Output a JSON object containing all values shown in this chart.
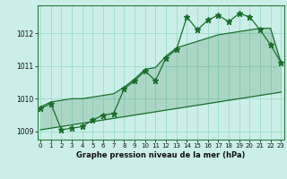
{
  "xlabel": "Graphe pression niveau de la mer (hPa)",
  "ylabel": "",
  "bg_color": "#cceee8",
  "grid_color": "#99ddcc",
  "line_color": "#1a6e2a",
  "x": [
    0,
    1,
    2,
    3,
    4,
    5,
    6,
    7,
    8,
    9,
    10,
    11,
    12,
    13,
    14,
    15,
    16,
    17,
    18,
    19,
    20,
    21,
    22,
    23
  ],
  "y": [
    1009.7,
    1009.85,
    1009.05,
    1009.1,
    1009.15,
    1009.35,
    1009.5,
    1009.55,
    1010.3,
    1010.55,
    1010.85,
    1010.55,
    1011.25,
    1011.5,
    1012.5,
    1012.1,
    1012.4,
    1012.55,
    1012.35,
    1012.6,
    1012.5,
    1012.1,
    1011.65,
    1011.1
  ],
  "lower_band": [
    1009.05,
    1009.1,
    1009.15,
    1009.2,
    1009.25,
    1009.3,
    1009.35,
    1009.4,
    1009.45,
    1009.5,
    1009.55,
    1009.6,
    1009.65,
    1009.7,
    1009.75,
    1009.8,
    1009.85,
    1009.9,
    1009.95,
    1010.0,
    1010.05,
    1010.1,
    1010.15,
    1010.2
  ],
  "upper_band": [
    1009.75,
    1009.9,
    1009.95,
    1010.0,
    1010.0,
    1010.05,
    1010.1,
    1010.15,
    1010.35,
    1010.6,
    1010.9,
    1010.95,
    1011.3,
    1011.55,
    1011.65,
    1011.75,
    1011.85,
    1011.95,
    1012.0,
    1012.05,
    1012.1,
    1012.15,
    1012.15,
    1011.1
  ],
  "ylim": [
    1008.75,
    1012.85
  ],
  "yticks": [
    1009,
    1010,
    1011,
    1012
  ],
  "xticks": [
    0,
    1,
    2,
    3,
    4,
    5,
    6,
    7,
    8,
    9,
    10,
    11,
    12,
    13,
    14,
    15,
    16,
    17,
    18,
    19,
    20,
    21,
    22,
    23
  ],
  "tick_fontsize": 5.0,
  "xlabel_fontsize": 6.0
}
